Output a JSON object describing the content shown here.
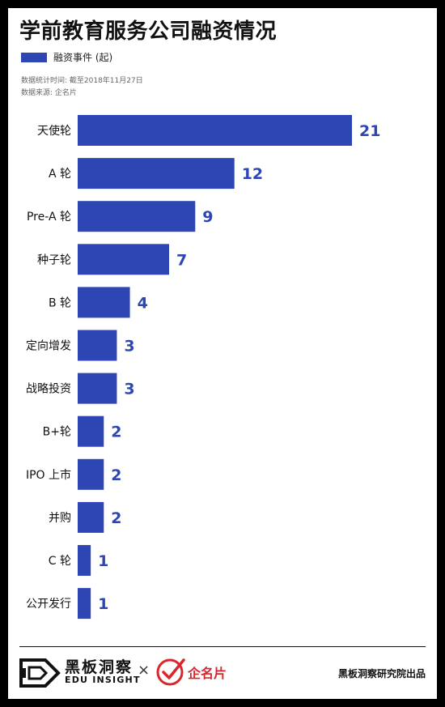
{
  "title": "学前教育服务公司融资情况",
  "legend_label": "融资事件 (起)",
  "meta_time": "数据统计时间: 截至2018年11月27日",
  "meta_source": "数据来源: 企名片",
  "bar_color": "#2e46b4",
  "value_color": "#2e46b4",
  "chart_data": {
    "type": "bar",
    "orientation": "horizontal",
    "categories": [
      "天使轮",
      "A 轮",
      "Pre-A 轮",
      "种子轮",
      "B 轮",
      "定向增发",
      "战略投资",
      "B+轮",
      "IPO 上市",
      "并购",
      "C 轮",
      "公开发行"
    ],
    "values": [
      21,
      12,
      9,
      7,
      4,
      3,
      3,
      2,
      2,
      2,
      1,
      1
    ],
    "series": [
      {
        "name": "融资事件 (起)",
        "values": [
          21,
          12,
          9,
          7,
          4,
          3,
          3,
          2,
          2,
          2,
          1,
          1
        ]
      }
    ],
    "title": "学前教育服务公司融资情况",
    "xlabel": "",
    "ylabel": "",
    "xlim": [
      0,
      21
    ],
    "grid": false,
    "legend": "top-left"
  },
  "footer": {
    "brand_cn": "黑板洞察",
    "brand_en": "EDU INSIGHT",
    "times": "×",
    "partner": "企名片",
    "producer": "黑板洞察研究院出品"
  },
  "icons": [
    "edu-insight-logo-icon",
    "qimingpian-check-icon"
  ]
}
